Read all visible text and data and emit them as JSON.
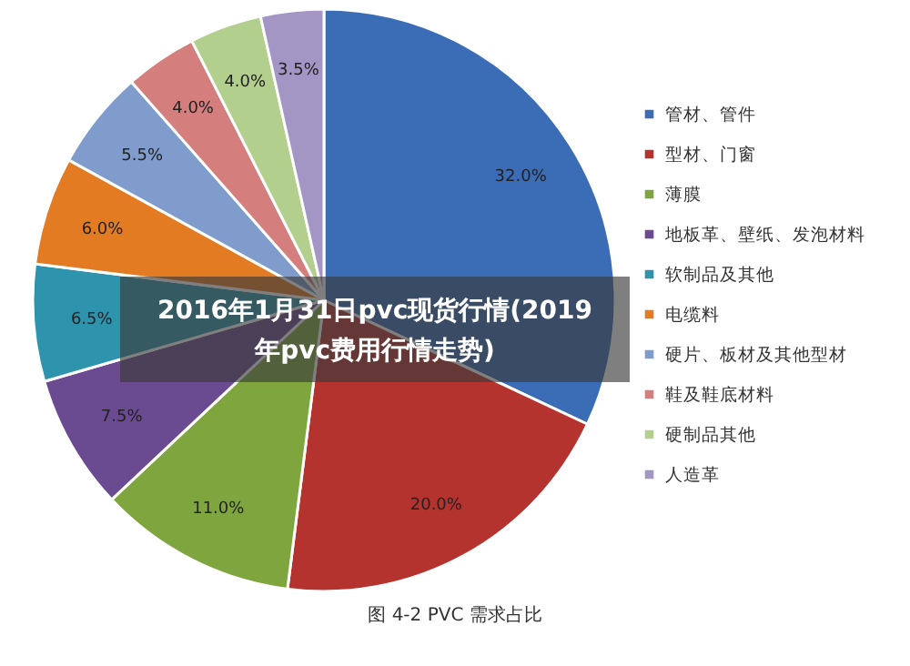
{
  "chart_data": {
    "type": "pie",
    "title": "2016年1月31日pvc现货行情(2019年pvc费用行情走势)",
    "categories": [
      "管材、管件",
      "型材、门窗",
      "薄膜",
      "地板革、壁纸、发泡材料",
      "软制品及其他",
      "电缆料",
      "硬片、板材及其他型材",
      "鞋及鞋底材料",
      "硬制品其他",
      "人造革"
    ],
    "values": [
      32.0,
      20.0,
      11.0,
      7.5,
      6.5,
      6.0,
      5.5,
      4.0,
      4.0,
      3.5
    ],
    "value_labels": [
      "32.0%",
      "20.0%",
      "11.0%",
      "7.5%",
      "6.5%",
      "6.0%",
      "5.5%",
      "4.0%",
      "4.0%",
      "3.5%"
    ],
    "colors": [
      "#3a6db5",
      "#b5332e",
      "#7fa63e",
      "#6a4a91",
      "#2e94ad",
      "#e37b22",
      "#7f9ccc",
      "#d47f7e",
      "#b3cf8e",
      "#a395c4"
    ],
    "legend": "right",
    "annotations": [
      "图 4-2 PVC 需求占比"
    ]
  }
}
